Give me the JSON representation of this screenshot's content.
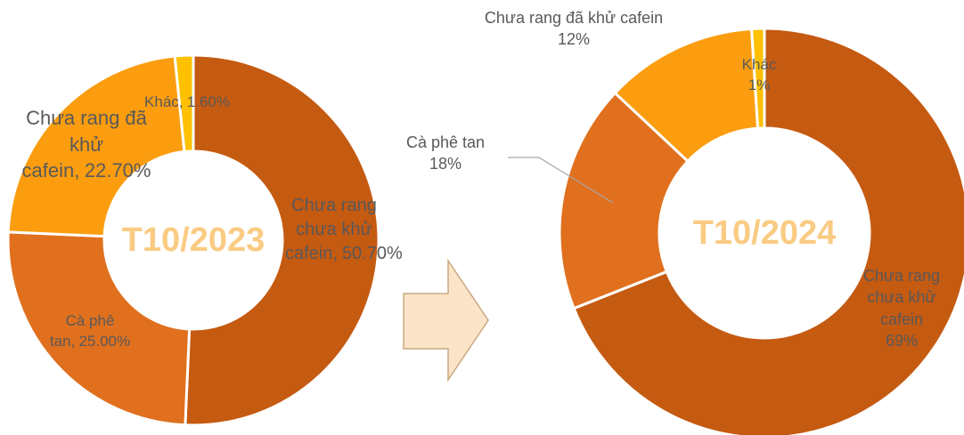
{
  "chart_data": [
    {
      "type": "pie",
      "donut": true,
      "title": "T10/2023",
      "categories": [
        "Chưa rang chưa khử cafein",
        "Cà phê tan",
        "Chưa rang đã khử cafein",
        "Khác"
      ],
      "values": [
        50.7,
        25.0,
        22.7,
        1.6
      ],
      "value_labels": [
        "50.70%",
        "25.00%",
        "22.70%",
        "1.60%"
      ],
      "colors": [
        "#C55A11",
        "#E0701E",
        "#FB9D0F",
        "#FFC000"
      ]
    },
    {
      "type": "pie",
      "donut": true,
      "title": "T10/2024",
      "categories": [
        "Chưa rang chưa khử cafein",
        "Cà phê tan",
        "Chưa rang đã khử cafein",
        "Khác"
      ],
      "values": [
        69,
        18,
        12,
        1
      ],
      "value_labels": [
        "69%",
        "18%",
        "12%",
        "1%"
      ],
      "colors": [
        "#C55A11",
        "#E0701E",
        "#FB9D0F",
        "#FFC000"
      ]
    }
  ]
}
